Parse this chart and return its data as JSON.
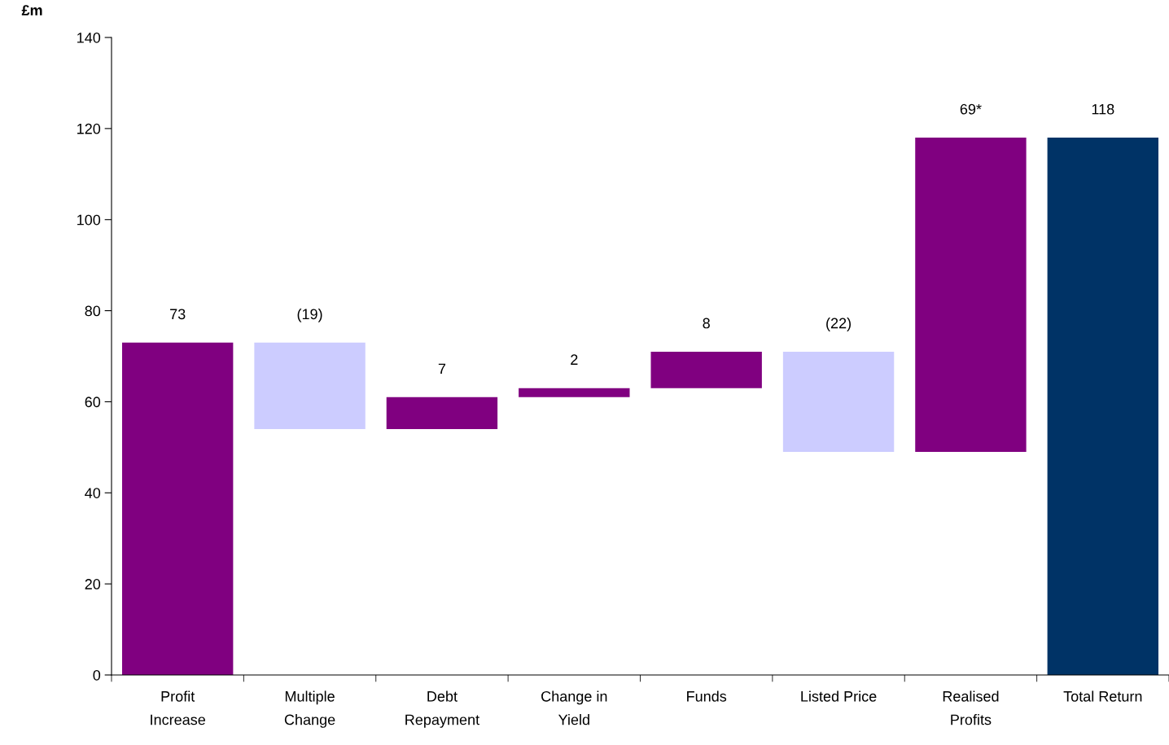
{
  "chart_data": {
    "type": "bar",
    "ylabel": "£m",
    "categories": [
      "Profit\nIncrease",
      "Multiple\nChange",
      "Debt\nRepayment",
      "Change in\nYield",
      "Funds",
      "Listed Price",
      "Realised\nProfits",
      "Total Return"
    ],
    "values": [
      73,
      -19,
      7,
      2,
      8,
      -22,
      69,
      118
    ],
    "base": [
      0,
      73,
      54,
      61,
      63,
      71,
      49,
      0
    ],
    "colors": [
      "#800080",
      "#ccccff",
      "#800080",
      "#800080",
      "#800080",
      "#ccccff",
      "#800080",
      "#003366"
    ],
    "value_labels": [
      "73",
      "(19)",
      "7",
      "2",
      "8",
      "(22)",
      "69*",
      "118"
    ],
    "ylim": [
      0,
      140
    ],
    "yticks": [
      0,
      20,
      40,
      60,
      80,
      100,
      120,
      140
    ],
    "grid": false,
    "legend": false
  }
}
